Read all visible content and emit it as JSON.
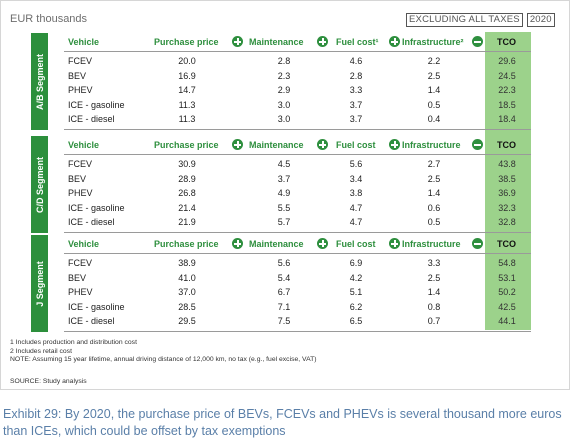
{
  "unit_label": "EUR thousands",
  "tax_note": "EXCLUDING ALL TAXES",
  "year": "2020",
  "chart_data": {
    "type": "table",
    "columns": [
      "Vehicle",
      "Purchase price",
      "Maintenance",
      "Fuel cost",
      "Infrastructure",
      "TCO"
    ],
    "column_ops": [
      "+",
      "+",
      "+",
      "−",
      ""
    ],
    "segments": [
      {
        "label": "A/B Segment",
        "fuel_header": "Fuel cost¹",
        "infra_header": "Infrastructure²",
        "rows": [
          {
            "vehicle": "FCEV",
            "purchase": "20.0",
            "maintenance": "2.8",
            "fuel": "4.6",
            "infrastructure": "2.2",
            "tco": "29.6"
          },
          {
            "vehicle": "BEV",
            "purchase": "16.9",
            "maintenance": "2.3",
            "fuel": "2.8",
            "infrastructure": "2.5",
            "tco": "24.5"
          },
          {
            "vehicle": "PHEV",
            "purchase": "14.7",
            "maintenance": "2.9",
            "fuel": "3.3",
            "infrastructure": "1.4",
            "tco": "22.3"
          },
          {
            "vehicle": "ICE - gasoline",
            "purchase": "11.3",
            "maintenance": "3.0",
            "fuel": "3.7",
            "infrastructure": "0.5",
            "tco": "18.5"
          },
          {
            "vehicle": "ICE - diesel",
            "purchase": "11.3",
            "maintenance": "3.0",
            "fuel": "3.7",
            "infrastructure": "0.4",
            "tco": "18.4"
          }
        ]
      },
      {
        "label": "C/D Segment",
        "fuel_header": "Fuel cost",
        "infra_header": "Infrastructure",
        "rows": [
          {
            "vehicle": "FCEV",
            "purchase": "30.9",
            "maintenance": "4.5",
            "fuel": "5.6",
            "infrastructure": "2.7",
            "tco": "43.8"
          },
          {
            "vehicle": "BEV",
            "purchase": "28.9",
            "maintenance": "3.7",
            "fuel": "3.4",
            "infrastructure": "2.5",
            "tco": "38.5"
          },
          {
            "vehicle": "PHEV",
            "purchase": "26.8",
            "maintenance": "4.9",
            "fuel": "3.8",
            "infrastructure": "1.4",
            "tco": "36.9"
          },
          {
            "vehicle": "ICE - gasoline",
            "purchase": "21.4",
            "maintenance": "5.5",
            "fuel": "4.7",
            "infrastructure": "0.6",
            "tco": "32.3"
          },
          {
            "vehicle": "ICE - diesel",
            "purchase": "21.9",
            "maintenance": "5.7",
            "fuel": "4.7",
            "infrastructure": "0.5",
            "tco": "32.8"
          }
        ]
      },
      {
        "label": "J Segment",
        "fuel_header": "Fuel cost",
        "infra_header": "Infrastructure",
        "rows": [
          {
            "vehicle": "FCEV",
            "purchase": "38.9",
            "maintenance": "5.6",
            "fuel": "6.9",
            "infrastructure": "3.3",
            "tco": "54.8"
          },
          {
            "vehicle": "BEV",
            "purchase": "41.0",
            "maintenance": "5.4",
            "fuel": "4.2",
            "infrastructure": "2.5",
            "tco": "53.1"
          },
          {
            "vehicle": "PHEV",
            "purchase": "37.0",
            "maintenance": "6.7",
            "fuel": "5.1",
            "infrastructure": "1.4",
            "tco": "50.2"
          },
          {
            "vehicle": "ICE - gasoline",
            "purchase": "28.5",
            "maintenance": "7.1",
            "fuel": "6.2",
            "infrastructure": "0.8",
            "tco": "42.5"
          },
          {
            "vehicle": "ICE - diesel",
            "purchase": "29.5",
            "maintenance": "7.5",
            "fuel": "6.5",
            "infrastructure": "0.7",
            "tco": "44.1"
          }
        ]
      }
    ]
  },
  "notes": [
    "1 Includes production and distribution cost",
    "2 Includes retail cost",
    "NOTE: Assuming 15 year lifetime, annual driving distance of 12,000 km, no tax (e.g., fuel excise, VAT)"
  ],
  "source": "SOURCE: Study analysis",
  "caption": "Exhibit 29: By 2020, the purchase price of BEVs, FCEVs and PHEVs is several thousand more euros than ICEs, which could be offset by tax exemptions",
  "colors": {
    "segment_tab": "#2c8f3c",
    "header_text": "#2e8f3e",
    "tco_fill": "#9cd28b",
    "caption": "#5a7fa8"
  }
}
